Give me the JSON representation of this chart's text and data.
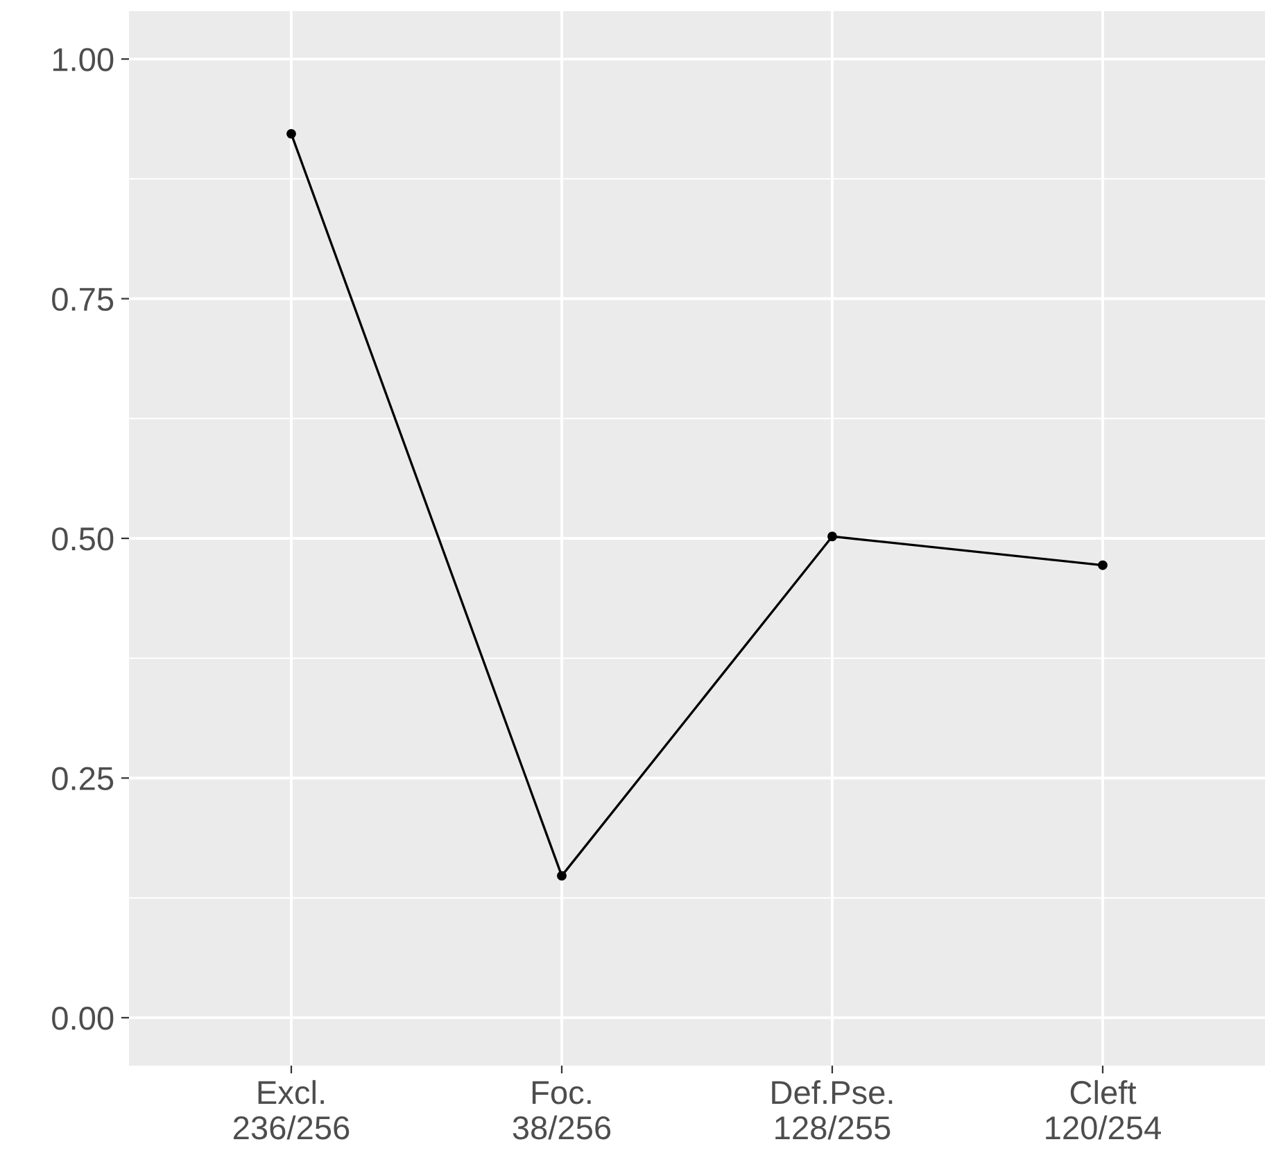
{
  "chart_data": {
    "type": "line",
    "categories": [
      "Excl.\n236/256",
      "Foc.\n38/256",
      "Def.Pse.\n128/255",
      "Cleft\n120/254"
    ],
    "series": [
      {
        "color": "#000000",
        "values": [
          0.922,
          0.148,
          0.502,
          0.472
        ]
      }
    ],
    "ylim": [
      -0.05,
      1.05
    ],
    "yticks": [
      {
        "value": 0,
        "label": "0.00"
      },
      {
        "value": 0.25,
        "label": "0.25"
      },
      {
        "value": 0.5,
        "label": "0.50"
      },
      {
        "value": 0.75,
        "label": "0.75"
      },
      {
        "value": 1,
        "label": "1.00"
      }
    ],
    "grid": true,
    "marker": "circle",
    "line_style": "solid"
  }
}
